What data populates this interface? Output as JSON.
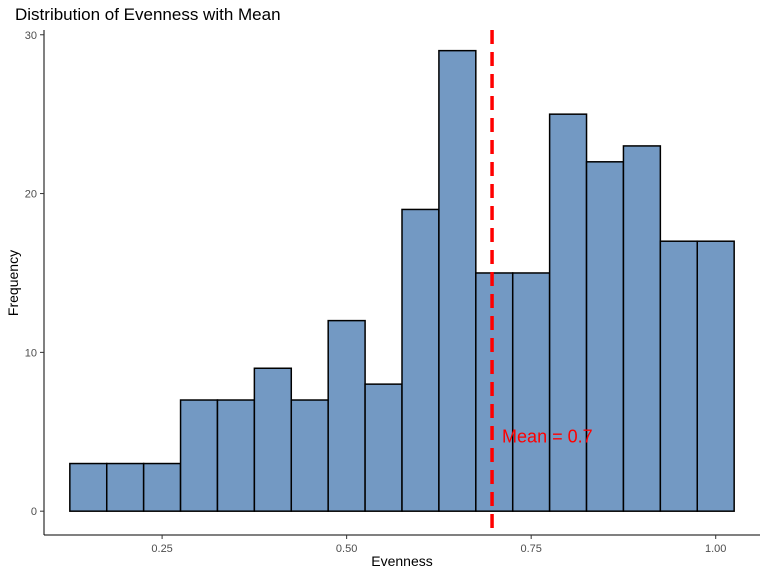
{
  "chart_data": {
    "type": "bar",
    "title": "Distribution of Evenness with Mean",
    "xlabel": "Evenness",
    "ylabel": "Frequency",
    "bin_width": 0.05,
    "bins": [
      {
        "x0": 0.125,
        "x1": 0.175,
        "count": 3
      },
      {
        "x0": 0.175,
        "x1": 0.225,
        "count": 3
      },
      {
        "x0": 0.225,
        "x1": 0.275,
        "count": 3
      },
      {
        "x0": 0.275,
        "x1": 0.325,
        "count": 7
      },
      {
        "x0": 0.325,
        "x1": 0.375,
        "count": 7
      },
      {
        "x0": 0.375,
        "x1": 0.425,
        "count": 9
      },
      {
        "x0": 0.425,
        "x1": 0.475,
        "count": 7
      },
      {
        "x0": 0.475,
        "x1": 0.525,
        "count": 12
      },
      {
        "x0": 0.525,
        "x1": 0.575,
        "count": 8
      },
      {
        "x0": 0.575,
        "x1": 0.625,
        "count": 19
      },
      {
        "x0": 0.625,
        "x1": 0.675,
        "count": 29
      },
      {
        "x0": 0.675,
        "x1": 0.725,
        "count": 15
      },
      {
        "x0": 0.725,
        "x1": 0.775,
        "count": 15
      },
      {
        "x0": 0.775,
        "x1": 0.825,
        "count": 25
      },
      {
        "x0": 0.825,
        "x1": 0.875,
        "count": 22
      },
      {
        "x0": 0.875,
        "x1": 0.925,
        "count": 23
      },
      {
        "x0": 0.925,
        "x1": 0.975,
        "count": 17
      },
      {
        "x0": 0.975,
        "x1": 1.025,
        "count": 17
      }
    ],
    "xlim": [
      0.09,
      1.06
    ],
    "ylim": [
      -1.5,
      30.3
    ],
    "x_ticks": [
      0.25,
      0.5,
      0.75,
      1.0
    ],
    "x_tick_labels": [
      "0.25",
      "0.50",
      "0.75",
      "1.00"
    ],
    "y_ticks": [
      0,
      10,
      20,
      30
    ],
    "y_tick_labels": [
      "0",
      "10",
      "20",
      "30"
    ],
    "mean_line": {
      "value": 0.697,
      "label": "Mean = 0.7",
      "label_y": 4.7,
      "color": "#ff0000",
      "style": "dashed"
    },
    "bar_fill": "#7399c3",
    "bar_stroke": "#000000",
    "grid": false,
    "legend": "none"
  }
}
